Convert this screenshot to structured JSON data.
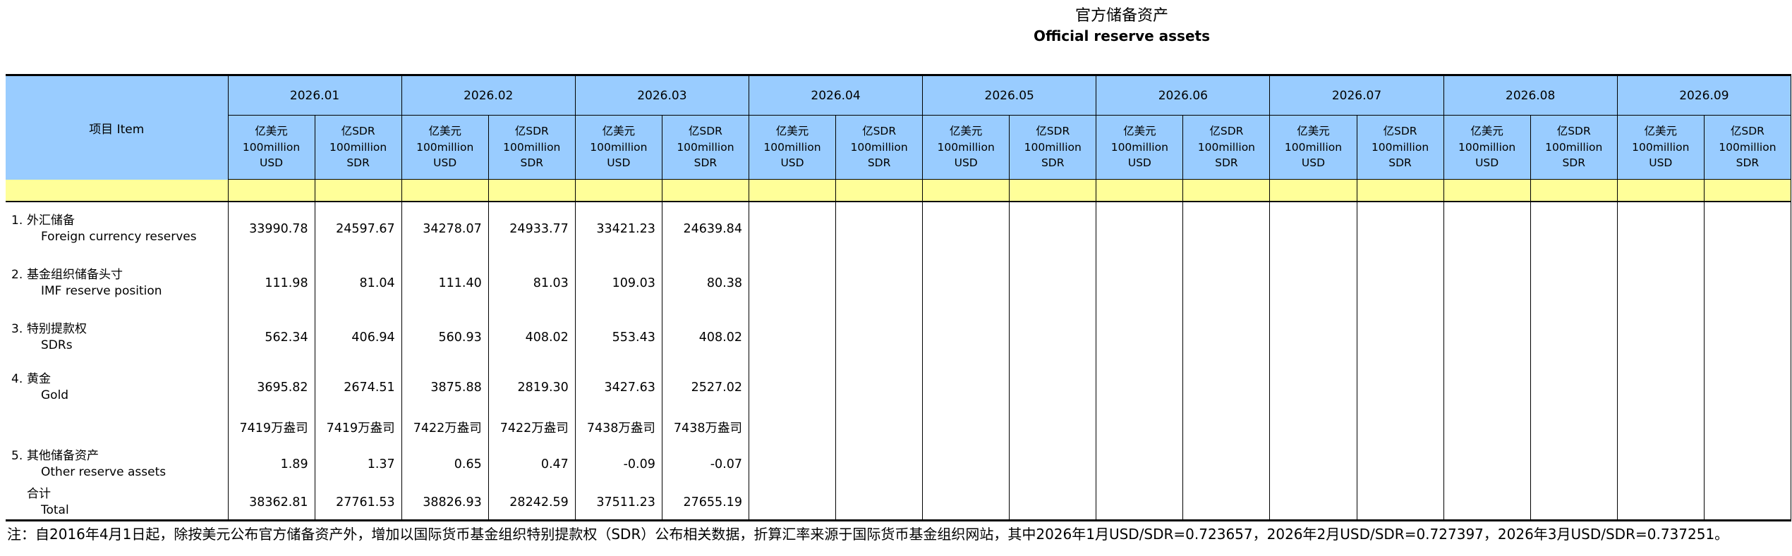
{
  "title": {
    "zh": "官方储备资产",
    "en": "Official reserve assets"
  },
  "table": {
    "item_header": "项目  Item",
    "months": [
      "2026.01",
      "2026.02",
      "2026.03",
      "2026.04",
      "2026.05",
      "2026.06",
      "2026.07",
      "2026.08",
      "2026.09"
    ],
    "units": {
      "usd": [
        "亿美元",
        "100million",
        "USD"
      ],
      "sdr": [
        "亿SDR",
        "100million",
        "SDR"
      ]
    },
    "rows": [
      {
        "num": "1.",
        "zh": "外汇储备",
        "en": "Foreign currency reserves",
        "values": [
          "33990.78",
          "24597.67",
          "34278.07",
          "24933.77",
          "33421.23",
          "24639.84",
          "",
          "",
          "",
          "",
          "",
          "",
          "",
          "",
          "",
          "",
          "",
          ""
        ]
      },
      {
        "num": "2.",
        "zh": "基金组织储备头寸",
        "en": "IMF reserve position",
        "values": [
          "111.98",
          "81.04",
          "111.40",
          "81.03",
          "109.03",
          "80.38",
          "",
          "",
          "",
          "",
          "",
          "",
          "",
          "",
          "",
          "",
          "",
          ""
        ]
      },
      {
        "num": "3.",
        "zh": "特别提款权",
        "en": "SDRs",
        "values": [
          "562.34",
          "406.94",
          "560.93",
          "408.02",
          "553.43",
          "408.02",
          "",
          "",
          "",
          "",
          "",
          "",
          "",
          "",
          "",
          "",
          "",
          ""
        ]
      },
      {
        "num": "4.",
        "zh": "黄金",
        "en": "Gold",
        "values": [
          "3695.82",
          "2674.51",
          "3875.88",
          "2819.30",
          "3427.63",
          "2527.02",
          "",
          "",
          "",
          "",
          "",
          "",
          "",
          "",
          "",
          "",
          "",
          ""
        ]
      },
      {
        "num": "",
        "zh": "",
        "en": "",
        "values": [
          "7419万盎司",
          "7419万盎司",
          "7422万盎司",
          "7422万盎司",
          "7438万盎司",
          "7438万盎司",
          "",
          "",
          "",
          "",
          "",
          "",
          "",
          "",
          "",
          "",
          "",
          ""
        ]
      },
      {
        "num": "5.",
        "zh": "其他储备资产",
        "en": "Other reserve assets",
        "values": [
          "1.89",
          "1.37",
          "0.65",
          "0.47",
          "-0.09",
          "-0.07",
          "",
          "",
          "",
          "",
          "",
          "",
          "",
          "",
          "",
          "",
          "",
          ""
        ]
      },
      {
        "num": "",
        "zh": "合计",
        "en": "Total",
        "values": [
          "38362.81",
          "27761.53",
          "38826.93",
          "28242.59",
          "37511.23",
          "27655.19",
          "",
          "",
          "",
          "",
          "",
          "",
          "",
          "",
          "",
          "",
          "",
          ""
        ]
      }
    ]
  },
  "note": "注：自2016年4月1日起，除按美元公布官方储备资产外，增加以国际货币基金组织特别提款权（SDR）公布相关数据，折算汇率来源于国际货币基金组织网站，其中2026年1月USD/SDR=0.723657，2026年2月USD/SDR=0.727397，2026年3月USD/SDR=0.737251。",
  "colors": {
    "header_blue": "#99CCFF",
    "separator_yellow": "#FFFF99",
    "border": "#000000",
    "text": "#000000"
  }
}
